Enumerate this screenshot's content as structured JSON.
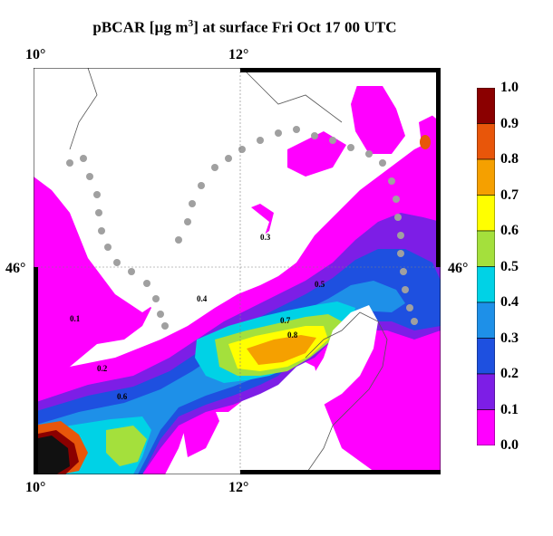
{
  "title": {
    "prefix": "pBCAR [µg m",
    "exponent": "3",
    "suffix": "] at surface Fri Oct 17 00 UTC"
  },
  "axes": {
    "top_left": "10°",
    "top_right": "12°",
    "bottom_left": "10°",
    "bottom_right": "12°",
    "left_lat": "46°",
    "right_lat": "46°"
  },
  "colorbar": {
    "levels": [
      "1.0",
      "0.9",
      "0.8",
      "0.7",
      "0.6",
      "0.5",
      "0.4",
      "0.3",
      "0.2",
      "0.1",
      "0.0"
    ],
    "colors": [
      "#8b0000",
      "#e8560a",
      "#f5a000",
      "#ffff00",
      "#a4e03c",
      "#00d2e6",
      "#1e90e8",
      "#1e50e0",
      "#7d1ee6",
      "#ff00ff",
      "#ffffff"
    ]
  },
  "contour_labels": [
    "0.1",
    "0.2",
    "0.3",
    "0.4",
    "0.5",
    "0.6",
    "0.7",
    "0.8"
  ],
  "legend_colors": {
    "border": "#000000",
    "grid": "#808080",
    "coastline": "#555555",
    "dots": "#a0a0a0"
  }
}
